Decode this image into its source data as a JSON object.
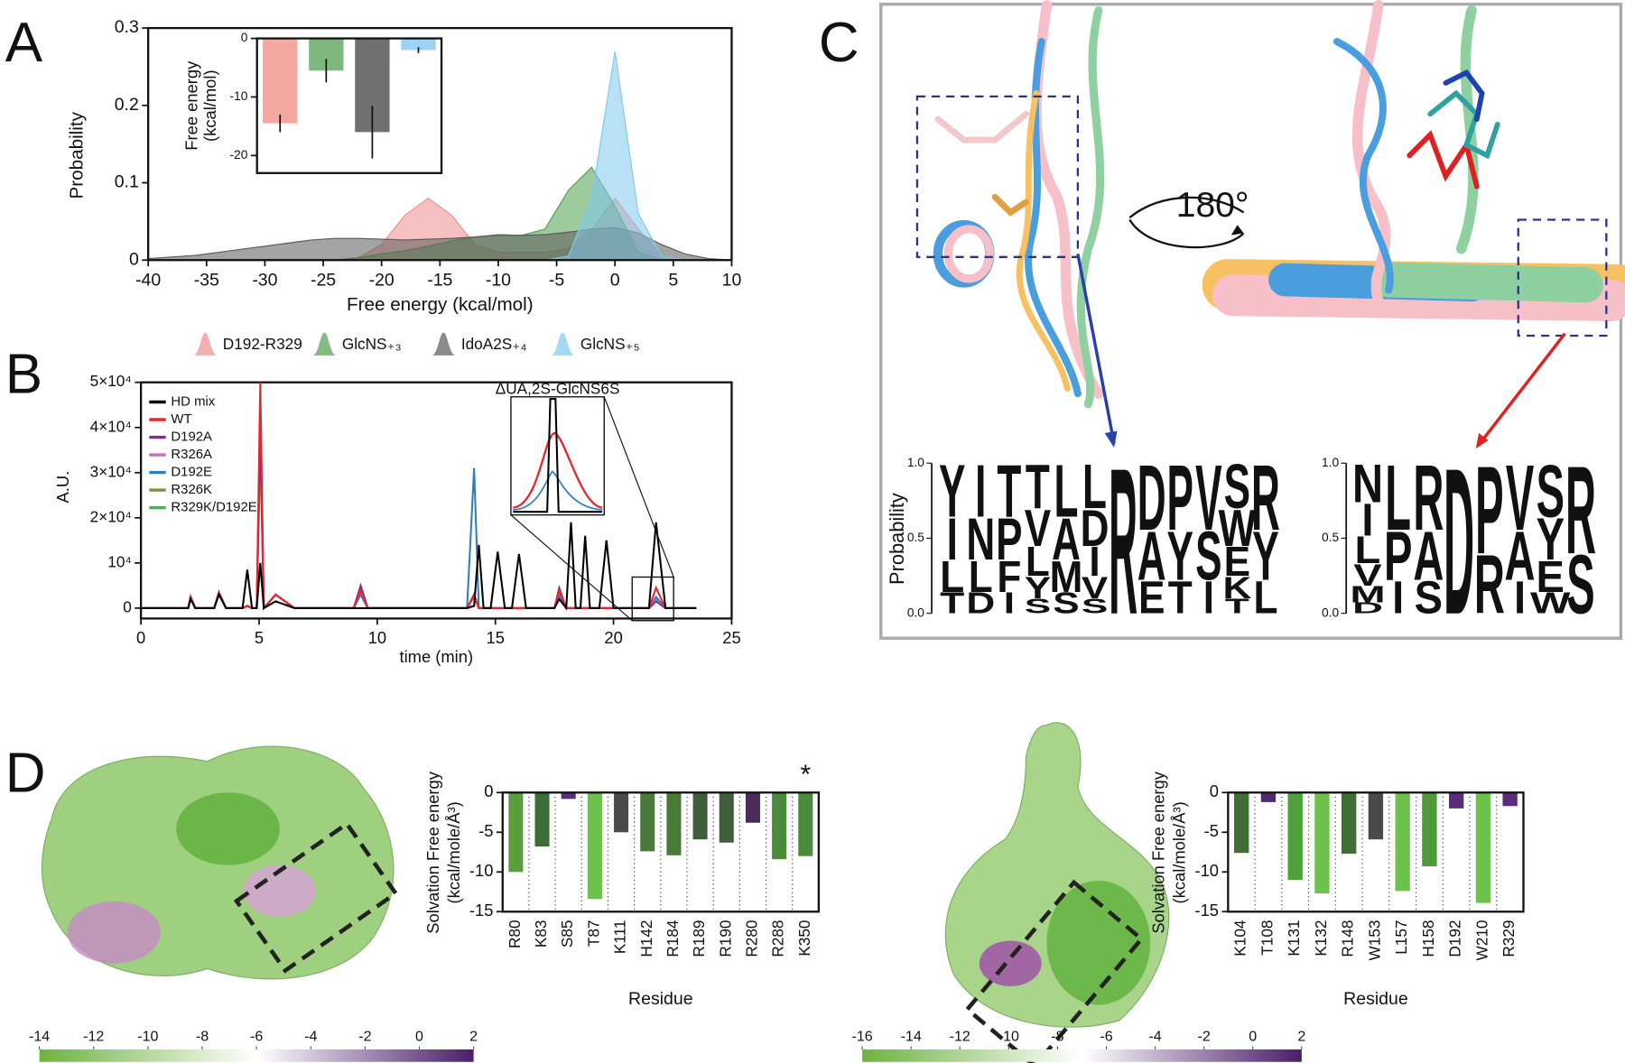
{
  "panel_labels": [
    "A",
    "B",
    "C",
    "D"
  ],
  "chart_data": [
    {
      "type": "area",
      "xlabel": "Free energy (kcal/mol)",
      "ylabel": "Probability",
      "x": [
        -40,
        -38,
        -36,
        -34,
        -32,
        -30,
        -28,
        -26,
        -24,
        -22,
        -20,
        -18,
        -16,
        -14,
        -12,
        -10,
        -8,
        -6,
        -4,
        -2,
        0,
        2,
        4,
        6,
        8,
        10
      ],
      "series": [
        {
          "name": "D192-R329",
          "color": "#f08c8c",
          "values": [
            0,
            0,
            0,
            0,
            0,
            0,
            0,
            0,
            0,
            0.003,
            0.02,
            0.058,
            0.08,
            0.058,
            0.02,
            0.01,
            0.01,
            0.01,
            0.015,
            0.04,
            0.08,
            0.04,
            0.005,
            0,
            0,
            0
          ]
        },
        {
          "name": "GlcNS₊₃",
          "color": "#4f9e4f",
          "values": [
            0,
            0,
            0,
            0,
            0,
            0,
            0,
            0,
            0,
            0.003,
            0.008,
            0.012,
            0.018,
            0.025,
            0.03,
            0.033,
            0.032,
            0.04,
            0.09,
            0.12,
            0.07,
            0.01,
            0,
            0,
            0,
            0
          ]
        },
        {
          "name": "IdoA2S₊₄",
          "color": "#5a5a5a",
          "values": [
            0.002,
            0.004,
            0.006,
            0.01,
            0.014,
            0.018,
            0.022,
            0.026,
            0.028,
            0.028,
            0.027,
            0.026,
            0.027,
            0.028,
            0.03,
            0.032,
            0.032,
            0.033,
            0.036,
            0.04,
            0.042,
            0.035,
            0.02,
            0.008,
            0.002,
            0
          ]
        },
        {
          "name": "GlcNS₊₅",
          "color": "#80c8ee",
          "values": [
            0,
            0,
            0,
            0,
            0,
            0,
            0,
            0,
            0,
            0,
            0,
            0,
            0,
            0,
            0,
            0,
            0,
            0,
            0.005,
            0.08,
            0.27,
            0.06,
            0.005,
            0,
            0,
            0
          ]
        }
      ],
      "xlim": [
        -40,
        10
      ],
      "xticks": [
        -40,
        -35,
        -30,
        -25,
        -20,
        -15,
        -10,
        -5,
        0,
        5,
        10
      ],
      "ylim": [
        0,
        0.3
      ],
      "yticks": [
        0,
        0.1,
        0.2,
        0.3
      ]
    },
    {
      "type": "bar",
      "ylabel": [
        "Free energy",
        "(kcal/mol)"
      ],
      "values": [
        -14.5,
        -5.5,
        -16,
        -2
      ],
      "errors": [
        1.5,
        2,
        4.5,
        0.5
      ],
      "colors": [
        "#f5a8a0",
        "#7fb87f",
        "#707070",
        "#9cd4f2"
      ],
      "ylim": [
        -23,
        0
      ],
      "yticks": [
        0,
        -10,
        -20
      ]
    },
    {
      "type": "line",
      "xlabel": "time (min)",
      "ylabel": "A.U.",
      "annotation": "ΔUA,2S-GlcNS6S",
      "x": [
        0,
        2,
        2.1,
        2.3,
        3.1,
        3.3,
        3.6,
        4.3,
        4.5,
        4.7,
        4.9,
        5.05,
        5.2,
        5.7,
        6.5,
        9.0,
        9.3,
        9.6,
        13.8,
        14.1,
        14.3,
        14.5,
        14.8,
        15.1,
        15.4,
        15.7,
        16,
        16.3,
        17.5,
        17.7,
        18.0,
        18.2,
        18.4,
        18.6,
        18.8,
        19.0,
        19.4,
        19.7,
        20.0,
        21.5,
        21.8,
        22.2,
        23.5
      ],
      "series": [
        {
          "name": "HD mix",
          "color": "#000000",
          "values": [
            0,
            0,
            2000,
            0,
            0,
            3000,
            0,
            0,
            8500,
            0,
            0,
            10000,
            0,
            1500,
            0,
            0,
            0,
            0,
            0,
            500,
            14000,
            0,
            0,
            12500,
            0,
            0,
            12000,
            0,
            0,
            2000,
            0,
            19000,
            0,
            0,
            16000,
            0,
            0,
            15000,
            0,
            0,
            19000,
            0,
            0
          ]
        },
        {
          "name": "WT",
          "color": "#e8262a",
          "values": [
            0,
            0,
            2500,
            0,
            0,
            3500,
            0,
            0,
            500,
            0,
            0,
            50000,
            0,
            3000,
            0,
            0,
            4000,
            0,
            0,
            3000,
            0,
            0,
            0,
            0,
            0,
            0,
            0,
            0,
            0,
            4000,
            0,
            0,
            0,
            0,
            0,
            0,
            0,
            0,
            0,
            0,
            4500,
            0,
            0
          ]
        },
        {
          "name": "D192A",
          "color": "#7b2f8e",
          "values": [
            0,
            0,
            2500,
            0,
            0,
            3500,
            0,
            0,
            500,
            0,
            0,
            40000,
            0,
            3000,
            0,
            0,
            5000,
            0,
            0,
            3000,
            0,
            0,
            0,
            0,
            0,
            0,
            0,
            0,
            0,
            4500,
            0,
            0,
            0,
            0,
            0,
            0,
            0,
            0,
            0,
            0,
            1500,
            0,
            0
          ]
        },
        {
          "name": "R326A",
          "color": "#c46fb0",
          "values": [
            0,
            0,
            2500,
            0,
            0,
            3500,
            0,
            0,
            500,
            0,
            0,
            42000,
            0,
            3000,
            0,
            0,
            4500,
            0,
            0,
            3000,
            0,
            0,
            0,
            0,
            0,
            0,
            0,
            0,
            0,
            4000,
            0,
            0,
            0,
            0,
            0,
            0,
            0,
            0,
            0,
            0,
            1800,
            0,
            0
          ]
        },
        {
          "name": "D192E",
          "color": "#2f7fc0",
          "values": [
            0,
            0,
            2500,
            0,
            0,
            3500,
            0,
            0,
            500,
            0,
            0,
            40000,
            0,
            3000,
            0,
            0,
            3000,
            0,
            0,
            31000,
            0,
            0,
            0,
            0,
            0,
            0,
            0,
            0,
            0,
            3000,
            0,
            0,
            0,
            0,
            0,
            0,
            0,
            0,
            0,
            0,
            2500,
            0,
            0
          ]
        },
        {
          "name": "R326K",
          "color": "#8a8a3a",
          "values": [
            0,
            0,
            2500,
            0,
            0,
            3500,
            0,
            0,
            500,
            0,
            0,
            38000,
            0,
            3000,
            0,
            0,
            3500,
            0,
            0,
            2500,
            0,
            0,
            0,
            0,
            0,
            0,
            0,
            0,
            0,
            3000,
            0,
            0,
            0,
            0,
            0,
            0,
            0,
            0,
            0,
            0,
            1500,
            0,
            0
          ]
        },
        {
          "name": "R329K/D192E",
          "color": "#4fae4f",
          "values": [
            0,
            0,
            2500,
            0,
            0,
            3500,
            0,
            0,
            500,
            0,
            0,
            35000,
            0,
            3000,
            0,
            0,
            3000,
            0,
            0,
            3000,
            0,
            0,
            0,
            0,
            0,
            0,
            0,
            0,
            0,
            3000,
            0,
            0,
            0,
            0,
            0,
            0,
            0,
            0,
            0,
            0,
            2000,
            0,
            0
          ]
        }
      ],
      "xlim": [
        0,
        25
      ],
      "xticks": [
        0,
        5,
        10,
        15,
        20,
        25
      ],
      "ylim": [
        -2300,
        50000
      ],
      "yticks": [
        0,
        {
          "value": 10000,
          "label": "10⁴"
        },
        {
          "value": 20000,
          "label": "2×10⁴"
        },
        {
          "value": 30000,
          "label": "3×10⁴"
        },
        {
          "value": 40000,
          "label": "4×10⁴"
        },
        {
          "value": 50000,
          "label": "5×10⁴"
        }
      ]
    },
    {
      "type": "bar",
      "ylabel": [
        "Solvation Free energy",
        "(kcal/mole/Å³)"
      ],
      "xlabel": "Residue",
      "annotation": "*",
      "categories": [
        "R80",
        "K83",
        "S85",
        "T87",
        "K111",
        "H142",
        "R184",
        "R189",
        "R190",
        "R280",
        "R288",
        "K350"
      ],
      "values": [
        -10,
        -6.8,
        -0.8,
        -13.4,
        -5,
        -7.4,
        -7.9,
        -5.9,
        -6.3,
        -3.8,
        -8.4,
        -8
      ],
      "colors": [
        "#5a9e3e",
        "#3d6b35",
        "#5b2c7a",
        "#6cc24a",
        "#4a4a4a",
        "#4a7a3a",
        "#4a7a3a",
        "#3d5e38",
        "#3d5e38",
        "#4b2a5c",
        "#4a8a3a",
        "#4a8a3a"
      ],
      "ylim": [
        -15,
        0
      ],
      "yticks": [
        0,
        -5,
        -10,
        -15
      ]
    },
    {
      "type": "bar",
      "ylabel": [
        "Solvation Free energy",
        "(kcal/mole/Å³)"
      ],
      "xlabel": "Residue",
      "categories": [
        "K104",
        "T108",
        "K131",
        "K132",
        "R148",
        "W153",
        "L157",
        "H158",
        "D192",
        "W210",
        "R329"
      ],
      "values": [
        -7.6,
        -1.2,
        -11,
        -12.7,
        -7.7,
        -5.9,
        -12.4,
        -9.3,
        -2,
        -13.9,
        -1.7
      ],
      "colors": [
        "#3f6e35",
        "#4f2a6e",
        "#4fa03a",
        "#6cc24a",
        "#3f6e35",
        "#4a4a4a",
        "#6cc24a",
        "#4f9a3a",
        "#5b2c7a",
        "#6cc24a",
        "#5b2c7a"
      ],
      "ylim": [
        -15,
        0
      ],
      "yticks": [
        0,
        -5,
        -10,
        -15
      ]
    },
    {
      "type": "colorbar",
      "colors": [
        "#6db33f",
        "#ffffff",
        "#4a1e6a"
      ],
      "xlim": [
        -14,
        2
      ],
      "xticks": [
        -14,
        -12,
        -10,
        -8,
        -6,
        -4,
        -2,
        0,
        2
      ]
    },
    {
      "type": "colorbar",
      "colors": [
        "#6db33f",
        "#ffffff",
        "#4a1e6a"
      ],
      "xlim": [
        -16,
        2
      ],
      "xticks": [
        -16,
        -14,
        -12,
        -10,
        -8,
        -6,
        -4,
        -2,
        0,
        2
      ]
    }
  ],
  "structure": {
    "rotation_label": "180°"
  },
  "logos": [
    {
      "ylabel": "Probability",
      "ylim": [
        0,
        1
      ],
      "yticks": [
        {
          "value": 0,
          "label": "0.0"
        },
        {
          "value": 0.5,
          "label": "0.5"
        },
        {
          "value": 1,
          "label": "1.0"
        }
      ],
      "columns": [
        [
          "Y",
          "I",
          "L",
          "T"
        ],
        [
          "I",
          "N",
          "L",
          "D"
        ],
        [
          "T",
          "P",
          "F",
          "I"
        ],
        [
          "T",
          "V",
          "L",
          "Y",
          "S"
        ],
        [
          "L",
          "A",
          "M",
          "S"
        ],
        [
          "L",
          "D",
          "I",
          "V",
          "S"
        ],
        [
          "R"
        ],
        [
          "D",
          "A",
          "E"
        ],
        [
          "P",
          "Y",
          "T"
        ],
        [
          "V",
          "S",
          "I"
        ],
        [
          "S",
          "W",
          "E",
          "K",
          "T"
        ],
        [
          "R",
          "Y",
          "L"
        ]
      ],
      "colors": [
        "#808080",
        "#808080",
        "#808080",
        "#808080",
        "#808080",
        "#808080",
        "#2b3f9f",
        "#808080",
        "#808080",
        "#808080",
        "#808080",
        "#808080"
      ]
    },
    {
      "ylim": [
        0,
        1
      ],
      "yticks": [
        {
          "value": 0,
          "label": "0.0"
        },
        {
          "value": 0.5,
          "label": "0.5"
        },
        {
          "value": 1,
          "label": "1.0"
        }
      ],
      "columns": [
        [
          "N",
          "I",
          "L",
          "V",
          "M",
          "D"
        ],
        [
          "L",
          "P",
          "I"
        ],
        [
          "R",
          "A",
          "S"
        ],
        [
          "D"
        ],
        [
          "P",
          "R"
        ],
        [
          "V",
          "A",
          "I"
        ],
        [
          "S",
          "Y",
          "E",
          "W"
        ],
        [
          "R",
          "S"
        ]
      ],
      "colors": [
        "#808080",
        "#808080",
        "#808080",
        "#e82020",
        "#808080",
        "#808080",
        "#808080",
        "#808080"
      ]
    }
  ]
}
